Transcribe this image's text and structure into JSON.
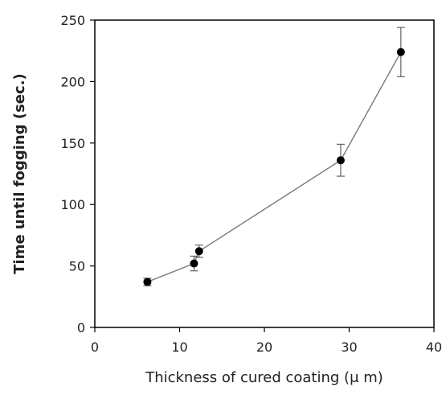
{
  "chart_data": {
    "type": "scatter",
    "title": "",
    "xlabel": "Thickness of cured coating (μ m)",
    "ylabel": "Time until fogging (sec.)",
    "xlim": [
      0,
      40
    ],
    "ylim": [
      0,
      250
    ],
    "x_ticks": [
      0,
      10,
      20,
      30,
      40
    ],
    "y_ticks": [
      0,
      50,
      100,
      150,
      200,
      250
    ],
    "grid": false,
    "legend": "none",
    "line_connected": true,
    "error_bars": true,
    "series": [
      {
        "color": "#000000",
        "line_color": "#808080",
        "x": [
          6.2,
          11.7,
          12.3,
          29.0,
          36.1
        ],
        "y": [
          37,
          52,
          62,
          136,
          224
        ],
        "error": [
          3,
          6,
          5,
          13,
          20
        ]
      }
    ]
  }
}
